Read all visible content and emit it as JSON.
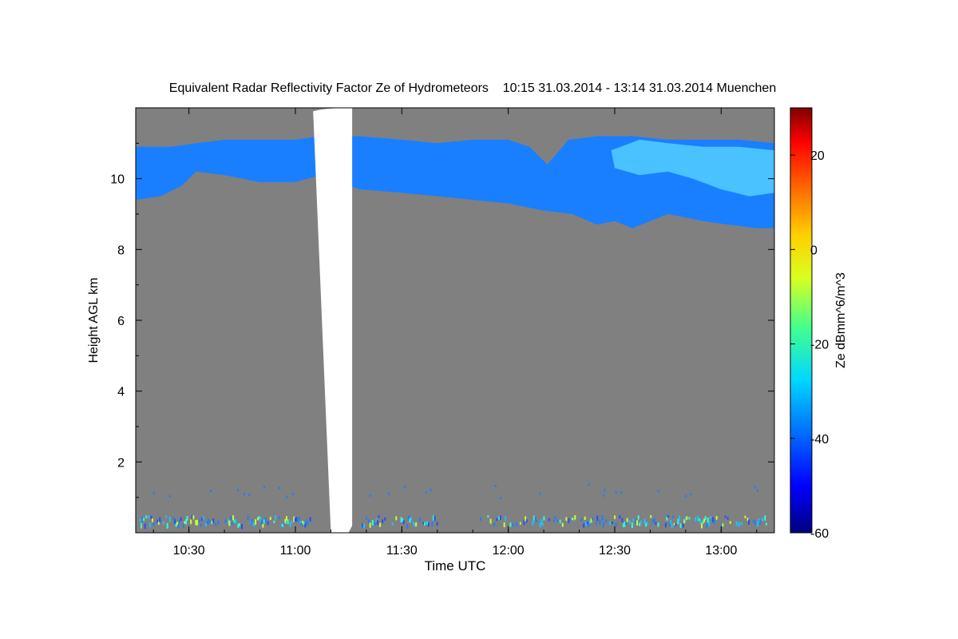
{
  "chart_data": {
    "type": "heatmap",
    "title": "Equivalent Radar Reflectivity Factor Ze of Hydrometeors    10:15 31.03.2014 - 13:14 31.03.2014 Muenchen",
    "xlabel": "Time UTC",
    "ylabel": "Height AGL km",
    "x_range": [
      "10:15",
      "13:14"
    ],
    "xlim_minutes": [
      615,
      795
    ],
    "ylim": [
      0,
      12
    ],
    "x_ticks": [
      {
        "label": "10:30",
        "minutes": 630
      },
      {
        "label": "11:00",
        "minutes": 660
      },
      {
        "label": "11:30",
        "minutes": 690
      },
      {
        "label": "12:00",
        "minutes": 720
      },
      {
        "label": "12:30",
        "minutes": 750
      },
      {
        "label": "13:00",
        "minutes": 780
      }
    ],
    "y_ticks": [
      {
        "label": "2",
        "value": 2
      },
      {
        "label": "4",
        "value": 4
      },
      {
        "label": "6",
        "value": 6
      },
      {
        "label": "8",
        "value": 8
      },
      {
        "label": "10",
        "value": 10
      }
    ],
    "colorbar": {
      "label": "Ze dBmm^6/m^3",
      "range": [
        -60,
        30
      ],
      "ticks": [
        {
          "label": "20",
          "value": 20
        },
        {
          "label": "0",
          "value": 0
        },
        {
          "label": "-20",
          "value": -20
        },
        {
          "label": "-40",
          "value": -40
        },
        {
          "label": "-60",
          "value": -60
        }
      ]
    },
    "background_color": "#808080",
    "cloud_layer": {
      "color": "#1a7fff",
      "highlight_color": "#5ad8ff",
      "top": [
        [
          615,
          10.9
        ],
        [
          625,
          10.9
        ],
        [
          632,
          11.0
        ],
        [
          640,
          11.1
        ],
        [
          650,
          11.1
        ],
        [
          660,
          11.1
        ],
        [
          667,
          11.2
        ],
        [
          678,
          11.2
        ],
        [
          690,
          11.1
        ],
        [
          700,
          11.0
        ],
        [
          710,
          11.1
        ],
        [
          720,
          11.1
        ],
        [
          726,
          10.9
        ],
        [
          731,
          10.4
        ],
        [
          737,
          11.1
        ],
        [
          745,
          11.2
        ],
        [
          755,
          11.2
        ],
        [
          765,
          11.1
        ],
        [
          775,
          11.1
        ],
        [
          785,
          11.1
        ],
        [
          795,
          11.0
        ]
      ],
      "base": [
        [
          615,
          9.4
        ],
        [
          622,
          9.5
        ],
        [
          628,
          9.8
        ],
        [
          632,
          10.2
        ],
        [
          640,
          10.1
        ],
        [
          650,
          9.9
        ],
        [
          660,
          9.9
        ],
        [
          667,
          10.1
        ],
        [
          678,
          9.7
        ],
        [
          690,
          9.6
        ],
        [
          700,
          9.5
        ],
        [
          710,
          9.4
        ],
        [
          720,
          9.3
        ],
        [
          730,
          9.1
        ],
        [
          738,
          9.0
        ],
        [
          745,
          8.7
        ],
        [
          750,
          8.8
        ],
        [
          755,
          8.6
        ],
        [
          760,
          8.8
        ],
        [
          765,
          9.0
        ],
        [
          770,
          8.9
        ],
        [
          775,
          8.8
        ],
        [
          782,
          8.7
        ],
        [
          790,
          8.6
        ],
        [
          795,
          8.6
        ]
      ],
      "highlight": [
        [
          749,
          10.8
        ],
        [
          757,
          11.1
        ],
        [
          765,
          11.0
        ],
        [
          775,
          10.9
        ],
        [
          785,
          10.9
        ],
        [
          795,
          10.8
        ],
        [
          795,
          9.6
        ],
        [
          788,
          9.5
        ],
        [
          780,
          9.7
        ],
        [
          772,
          10.0
        ],
        [
          765,
          10.2
        ],
        [
          757,
          10.1
        ],
        [
          750,
          10.3
        ]
      ]
    },
    "no_data_gap": {
      "color": "#ffffff",
      "start": [
        [
          665,
          11.9
        ],
        [
          668,
          12.0
        ],
        [
          676,
          12.0
        ]
      ],
      "end": [
        [
          676,
          0.2
        ],
        [
          675,
          0.0
        ],
        [
          670,
          0.0
        ]
      ]
    }
  }
}
